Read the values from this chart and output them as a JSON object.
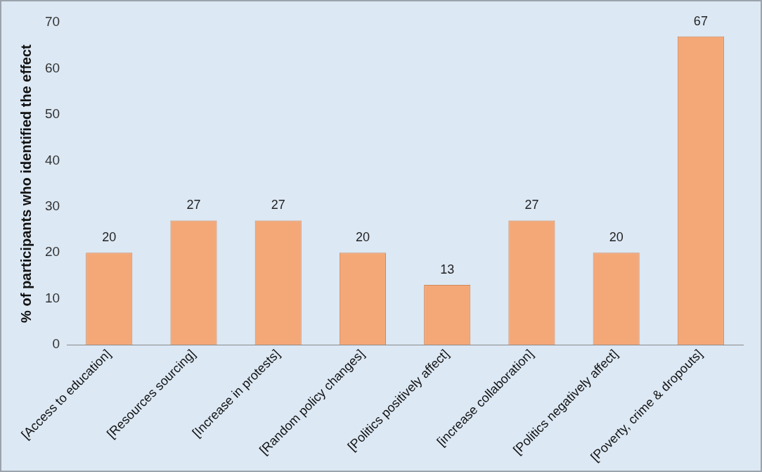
{
  "chart_data": {
    "type": "bar",
    "ylabel": "% of participants who identified the effect",
    "categories": [
      "[Access to education]",
      "[Resources sourcing]",
      "[Increase in protests]",
      "[Random policy changes]",
      "[Politics positively affect]",
      "[increase collaboration]",
      "[Politics negatively affect]",
      "[Poverty, crime & dropouts]"
    ],
    "values": [
      20,
      27,
      27,
      20,
      13,
      27,
      20,
      67
    ],
    "color": "#f4a878",
    "ylim": [
      0,
      70
    ],
    "yticks": [
      0,
      10,
      20,
      30,
      40,
      50,
      60,
      70
    ],
    "grid": false,
    "legend": false,
    "data_labels": true
  }
}
